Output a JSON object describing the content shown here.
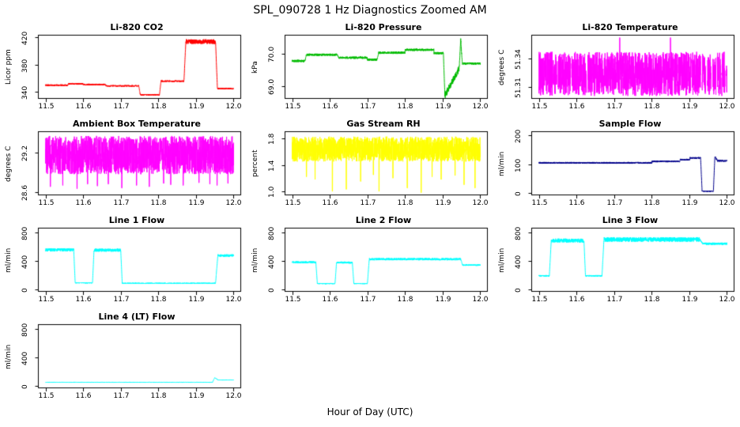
{
  "page": {
    "title": "SPL_090728  1 Hz Diagnostics Zoomed AM",
    "xlabel": "Hour of Day (UTC)"
  },
  "axes": {
    "xlim": [
      11.48,
      12.02
    ],
    "xticks": [
      {
        "v": 11.5,
        "label": "11.5"
      },
      {
        "v": 11.6,
        "label": "11.6"
      },
      {
        "v": 11.7,
        "label": "11.7"
      },
      {
        "v": 11.8,
        "label": "11.8"
      },
      {
        "v": 11.9,
        "label": "11.9"
      },
      {
        "v": 12.0,
        "label": "12.0"
      }
    ]
  },
  "chart_data": [
    {
      "type": "line",
      "title": "Li-820 CO2",
      "ylabel": "Licor ppm",
      "color": "#ff0000",
      "seed": 1,
      "ylim": [
        330,
        424
      ],
      "yticks": [
        {
          "v": 340,
          "label": "340"
        },
        {
          "v": 380,
          "label": "380"
        },
        {
          "v": 420,
          "label": "420"
        }
      ],
      "segments": [
        {
          "x0": 11.5,
          "x1": 11.56,
          "y": 350,
          "n": 1.2
        },
        {
          "x0": 11.56,
          "x1": 11.6,
          "y": 352,
          "n": 1.2
        },
        {
          "x0": 11.6,
          "x1": 11.66,
          "y": 351,
          "n": 1.2
        },
        {
          "x0": 11.66,
          "x1": 11.748,
          "y": 349,
          "n": 1.2
        },
        {
          "x0": 11.748,
          "x1": 11.752,
          "y0": 349,
          "y1": 336,
          "n": 0.8
        },
        {
          "x0": 11.752,
          "x1": 11.803,
          "y": 336,
          "n": 1.0
        },
        {
          "x0": 11.803,
          "x1": 11.807,
          "y0": 336,
          "y1": 356,
          "n": 0.8
        },
        {
          "x0": 11.807,
          "x1": 11.868,
          "y": 356,
          "n": 1.2
        },
        {
          "x0": 11.868,
          "x1": 11.873,
          "y0": 356,
          "y1": 413,
          "n": 1.0
        },
        {
          "x0": 11.873,
          "x1": 11.952,
          "y": 414,
          "n": 3.5
        },
        {
          "x0": 11.952,
          "x1": 11.957,
          "y0": 414,
          "y1": 345,
          "n": 1.0
        },
        {
          "x0": 11.957,
          "x1": 12.0,
          "y": 345,
          "n": 1.2
        }
      ]
    },
    {
      "type": "line",
      "title": "Li-820 Pressure",
      "ylabel": "kPa",
      "color": "#00bb00",
      "seed": 2,
      "ylim": [
        68.62,
        70.58
      ],
      "yticks": [
        {
          "v": 69.0,
          "label": "69.0"
        },
        {
          "v": 70.0,
          "label": "70.0"
        }
      ],
      "segments": [
        {
          "x0": 11.5,
          "x1": 11.534,
          "y": 69.78,
          "n": 0.035
        },
        {
          "x0": 11.534,
          "x1": 11.538,
          "y0": 69.78,
          "y1": 69.98,
          "n": 0.02
        },
        {
          "x0": 11.538,
          "x1": 11.62,
          "y": 69.97,
          "n": 0.035
        },
        {
          "x0": 11.62,
          "x1": 11.624,
          "y0": 69.97,
          "y1": 69.88,
          "n": 0.02
        },
        {
          "x0": 11.624,
          "x1": 11.7,
          "y": 69.88,
          "n": 0.035
        },
        {
          "x0": 11.7,
          "x1": 11.726,
          "y": 69.82,
          "n": 0.035
        },
        {
          "x0": 11.726,
          "x1": 11.73,
          "y0": 69.82,
          "y1": 70.03,
          "n": 0.02
        },
        {
          "x0": 11.73,
          "x1": 11.8,
          "y": 70.03,
          "n": 0.035
        },
        {
          "x0": 11.8,
          "x1": 11.877,
          "y": 70.12,
          "n": 0.035
        },
        {
          "x0": 11.877,
          "x1": 11.902,
          "y": 70.02,
          "n": 0.035
        },
        {
          "x0": 11.902,
          "x1": 11.906,
          "y0": 70.0,
          "y1": 68.72,
          "n": 0.03
        },
        {
          "x0": 11.906,
          "x1": 11.944,
          "y0": 68.72,
          "y1": 69.55,
          "n": 0.1
        },
        {
          "x0": 11.944,
          "x1": 11.948,
          "y0": 69.55,
          "y1": 70.45,
          "n": 0.05
        },
        {
          "x0": 11.948,
          "x1": 11.952,
          "y0": 70.45,
          "y1": 69.72,
          "n": 0.04
        },
        {
          "x0": 11.952,
          "x1": 12.0,
          "y": 69.7,
          "n": 0.035
        }
      ]
    },
    {
      "type": "line",
      "title": "Li-820 Temperature",
      "ylabel": "degrees C",
      "color": "#ff00ff",
      "seed": 3,
      "ylim": [
        51.297,
        51.365
      ],
      "yticks": [
        {
          "v": 51.31,
          "label": "51.31"
        },
        {
          "v": 51.34,
          "label": "51.34"
        }
      ],
      "segments": [
        {
          "x0": 11.5,
          "x1": 12.0,
          "y": 51.3235,
          "n": 0.0235
        }
      ],
      "spikes": [
        {
          "x": 11.715,
          "y": 51.362
        },
        {
          "x": 11.85,
          "y": 51.362
        }
      ],
      "gaps": [
        [
          11.548,
          11.551
        ],
        [
          11.584,
          11.587
        ],
        [
          11.627,
          11.63
        ],
        [
          11.905,
          11.908
        ],
        [
          11.93,
          11.934
        ],
        [
          11.944,
          11.948
        ],
        [
          11.958,
          11.962
        ],
        [
          11.971,
          11.974
        ],
        [
          11.983,
          11.986
        ],
        [
          11.995,
          11.998
        ]
      ]
    },
    {
      "type": "line",
      "title": "Ambient Box Temperature",
      "ylabel": "degrees C",
      "color": "#ff00ff",
      "seed": 4,
      "ylim": [
        28.55,
        29.52
      ],
      "yticks": [
        {
          "v": 28.6,
          "label": "28.6"
        },
        {
          "v": 29.2,
          "label": "29.2"
        }
      ],
      "segments": [
        {
          "x0": 11.5,
          "x1": 12.0,
          "y": 29.16,
          "n": 0.29
        }
      ],
      "spikes": [
        {
          "x": 11.513,
          "y": 28.68
        },
        {
          "x": 11.546,
          "y": 28.7
        },
        {
          "x": 11.584,
          "y": 28.65
        },
        {
          "x": 11.612,
          "y": 28.72
        },
        {
          "x": 11.638,
          "y": 28.69
        },
        {
          "x": 11.667,
          "y": 28.72
        },
        {
          "x": 11.703,
          "y": 28.66
        },
        {
          "x": 11.742,
          "y": 28.7
        },
        {
          "x": 11.776,
          "y": 28.68
        },
        {
          "x": 11.814,
          "y": 28.73
        },
        {
          "x": 11.833,
          "y": 28.71
        },
        {
          "x": 11.866,
          "y": 28.7
        },
        {
          "x": 11.908,
          "y": 28.74
        },
        {
          "x": 11.937,
          "y": 28.72
        },
        {
          "x": 11.956,
          "y": 28.7
        },
        {
          "x": 11.985,
          "y": 28.73
        }
      ]
    },
    {
      "type": "line",
      "title": "Gas Stream RH",
      "ylabel": "percent",
      "color": "#ffff00",
      "seed": 5,
      "ylim": [
        0.94,
        1.91
      ],
      "yticks": [
        {
          "v": 1.0,
          "label": "1.0"
        },
        {
          "v": 1.4,
          "label": "1.4"
        },
        {
          "v": 1.8,
          "label": "1.8"
        }
      ],
      "segments": [
        {
          "x0": 11.5,
          "x1": 12.0,
          "y": 1.64,
          "n": 0.19
        }
      ],
      "spikes": [
        {
          "x": 11.538,
          "y": 1.22
        },
        {
          "x": 11.561,
          "y": 1.18
        },
        {
          "x": 11.607,
          "y": 1.0
        },
        {
          "x": 11.644,
          "y": 1.03
        },
        {
          "x": 11.682,
          "y": 1.15
        },
        {
          "x": 11.716,
          "y": 1.25
        },
        {
          "x": 11.731,
          "y": 1.0
        },
        {
          "x": 11.768,
          "y": 1.2
        },
        {
          "x": 11.806,
          "y": 1.05
        },
        {
          "x": 11.843,
          "y": 0.98
        },
        {
          "x": 11.872,
          "y": 1.22
        },
        {
          "x": 11.896,
          "y": 1.18
        },
        {
          "x": 11.933,
          "y": 1.24
        },
        {
          "x": 11.957,
          "y": 1.1
        },
        {
          "x": 11.986,
          "y": 1.05
        }
      ]
    },
    {
      "type": "line",
      "title": "Sample Flow",
      "ylabel": "ml/min",
      "color": "#00008b",
      "seed": 6,
      "ylim": [
        -8,
        215
      ],
      "yticks": [
        {
          "v": 0,
          "label": "0"
        },
        {
          "v": 100,
          "label": "100"
        },
        {
          "v": 200,
          "label": "200"
        }
      ],
      "segments": [
        {
          "x0": 11.5,
          "x1": 11.8,
          "y": 105,
          "n": 3
        },
        {
          "x0": 11.8,
          "x1": 11.875,
          "y": 110,
          "n": 3
        },
        {
          "x0": 11.875,
          "x1": 11.902,
          "y": 116,
          "n": 3
        },
        {
          "x0": 11.902,
          "x1": 11.93,
          "y": 122,
          "n": 3
        },
        {
          "x0": 11.93,
          "x1": 11.934,
          "y0": 122,
          "y1": 6,
          "n": 2
        },
        {
          "x0": 11.934,
          "x1": 11.964,
          "y": 6,
          "n": 2
        },
        {
          "x0": 11.964,
          "x1": 11.968,
          "y0": 6,
          "y1": 128,
          "n": 2
        },
        {
          "x0": 11.968,
          "x1": 11.975,
          "y0": 128,
          "y1": 112,
          "n": 3
        },
        {
          "x0": 11.975,
          "x1": 12.0,
          "y": 112,
          "n": 3
        }
      ]
    },
    {
      "type": "line",
      "title": "Line 1 Flow",
      "ylabel": "ml/min",
      "color": "#00ffff",
      "seed": 7,
      "ylim": [
        -30,
        870
      ],
      "yticks": [
        {
          "v": 0,
          "label": "0"
        },
        {
          "v": 400,
          "label": "400"
        },
        {
          "v": 800,
          "label": "800"
        }
      ],
      "segments": [
        {
          "x0": 11.5,
          "x1": 11.575,
          "y": 560,
          "n": 22
        },
        {
          "x0": 11.575,
          "x1": 11.579,
          "y0": 560,
          "y1": 95,
          "n": 5
        },
        {
          "x0": 11.579,
          "x1": 11.625,
          "y": 95,
          "n": 7
        },
        {
          "x0": 11.625,
          "x1": 11.629,
          "y0": 95,
          "y1": 555,
          "n": 5
        },
        {
          "x0": 11.629,
          "x1": 11.7,
          "y": 555,
          "n": 22
        },
        {
          "x0": 11.7,
          "x1": 11.704,
          "y0": 555,
          "y1": 90,
          "n": 5
        },
        {
          "x0": 11.704,
          "x1": 11.952,
          "y": 90,
          "n": 7
        },
        {
          "x0": 11.952,
          "x1": 11.958,
          "y0": 90,
          "y1": 470,
          "n": 8
        },
        {
          "x0": 11.958,
          "x1": 12.0,
          "y": 480,
          "n": 18
        }
      ]
    },
    {
      "type": "line",
      "title": "Line 2 Flow",
      "ylabel": "ml/min",
      "color": "#00ffff",
      "seed": 8,
      "ylim": [
        -30,
        870
      ],
      "yticks": [
        {
          "v": 0,
          "label": "0"
        },
        {
          "v": 400,
          "label": "400"
        },
        {
          "v": 800,
          "label": "800"
        }
      ],
      "segments": [
        {
          "x0": 11.5,
          "x1": 11.563,
          "y": 385,
          "n": 14
        },
        {
          "x0": 11.563,
          "x1": 11.567,
          "y0": 385,
          "y1": 85,
          "n": 5
        },
        {
          "x0": 11.567,
          "x1": 11.614,
          "y": 85,
          "n": 7
        },
        {
          "x0": 11.614,
          "x1": 11.618,
          "y0": 85,
          "y1": 380,
          "n": 5
        },
        {
          "x0": 11.618,
          "x1": 11.66,
          "y": 380,
          "n": 14
        },
        {
          "x0": 11.66,
          "x1": 11.664,
          "y0": 380,
          "y1": 85,
          "n": 5
        },
        {
          "x0": 11.664,
          "x1": 11.7,
          "y": 85,
          "n": 7
        },
        {
          "x0": 11.7,
          "x1": 11.705,
          "y0": 85,
          "y1": 428,
          "n": 6
        },
        {
          "x0": 11.705,
          "x1": 11.948,
          "y": 428,
          "n": 16
        },
        {
          "x0": 11.948,
          "x1": 11.953,
          "y0": 428,
          "y1": 345,
          "n": 6
        },
        {
          "x0": 11.953,
          "x1": 12.0,
          "y": 345,
          "n": 10
        }
      ]
    },
    {
      "type": "line",
      "title": "Line 3 Flow",
      "ylabel": "ml/min",
      "color": "#00ffff",
      "seed": 9,
      "ylim": [
        -30,
        870
      ],
      "yticks": [
        {
          "v": 0,
          "label": "0"
        },
        {
          "v": 400,
          "label": "400"
        },
        {
          "v": 800,
          "label": "800"
        }
      ],
      "segments": [
        {
          "x0": 11.5,
          "x1": 11.528,
          "y": 195,
          "n": 10
        },
        {
          "x0": 11.528,
          "x1": 11.533,
          "y0": 195,
          "y1": 690,
          "n": 8
        },
        {
          "x0": 11.533,
          "x1": 11.62,
          "y": 690,
          "n": 28
        },
        {
          "x0": 11.62,
          "x1": 11.624,
          "y0": 690,
          "y1": 195,
          "n": 8
        },
        {
          "x0": 11.624,
          "x1": 11.668,
          "y": 195,
          "n": 10
        },
        {
          "x0": 11.668,
          "x1": 11.673,
          "y0": 195,
          "y1": 700,
          "n": 8
        },
        {
          "x0": 11.673,
          "x1": 11.928,
          "y": 705,
          "n": 32
        },
        {
          "x0": 11.928,
          "x1": 11.935,
          "y0": 705,
          "y1": 650,
          "n": 10
        },
        {
          "x0": 11.935,
          "x1": 12.0,
          "y": 645,
          "n": 16
        }
      ]
    },
    {
      "type": "line",
      "title": "Line 4 (LT) Flow",
      "ylabel": "ml/min",
      "color": "#00ffff",
      "seed": 10,
      "ylim": [
        -30,
        870
      ],
      "yticks": [
        {
          "v": 0,
          "label": "0"
        },
        {
          "v": 400,
          "label": "400"
        },
        {
          "v": 800,
          "label": "800"
        }
      ],
      "segments": [
        {
          "x0": 11.5,
          "x1": 11.944,
          "y": 55,
          "n": 4
        },
        {
          "x0": 11.944,
          "x1": 11.95,
          "y0": 55,
          "y1": 120,
          "n": 3
        },
        {
          "x0": 11.95,
          "x1": 11.958,
          "y0": 120,
          "y1": 88,
          "n": 3
        },
        {
          "x0": 11.958,
          "x1": 12.0,
          "y": 85,
          "n": 4
        }
      ]
    }
  ]
}
